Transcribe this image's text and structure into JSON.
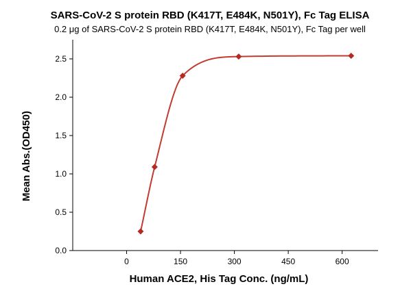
{
  "chart_data": {
    "type": "scatter",
    "title": "SARS-CoV-2 S protein RBD (K417T, E484K, N501Y), Fc Tag ELISA",
    "subtitle": "0.2 μg of SARS-CoV-2 S protein RBD (K417T, E484K, N501Y), Fc Tag per well",
    "xlabel": "Human ACE2, His Tag Conc. (ng/mL)",
    "ylabel": "Mean Abs.(OD450)",
    "xlim": [
      -150,
      700
    ],
    "ylim": [
      0,
      2.75
    ],
    "xticks": [
      0,
      150,
      300,
      450,
      600
    ],
    "yticks": [
      0.0,
      0.5,
      1.0,
      1.5,
      2.0,
      2.5
    ],
    "x_tick_labels": [
      "0",
      "150",
      "300",
      "450",
      "600"
    ],
    "y_tick_labels": [
      "0.0",
      "0.5",
      "1.0",
      "1.5",
      "2.0",
      "2.5"
    ],
    "grid": false,
    "series": [
      {
        "x": [
          39,
          78,
          156,
          312,
          625
        ],
        "y": [
          0.25,
          1.09,
          2.28,
          2.53,
          2.54
        ],
        "color": "#b52a22",
        "marker": "diamond",
        "fit_curve": true
      }
    ]
  }
}
